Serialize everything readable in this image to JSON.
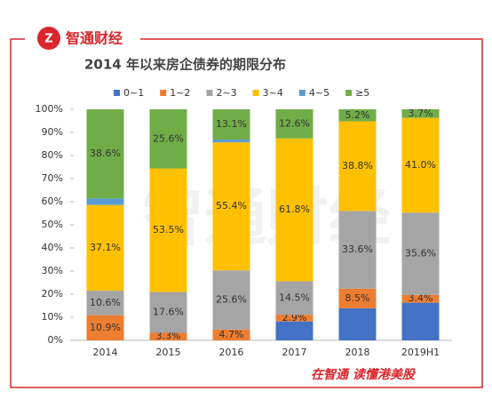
{
  "header": {
    "logo": "智通财经"
  },
  "footer": {
    "slogan": "在智通 读懂港美股"
  },
  "chart_data": {
    "type": "stacked_bar",
    "title": "2014 年以来房企债券的期限分布",
    "categories": [
      "2014",
      "2015",
      "2016",
      "2017",
      "2018",
      "2019H1"
    ],
    "series": [
      {
        "name": "0~1",
        "color": "#4472c4",
        "values": [
          0,
          0,
          0,
          8.2,
          13.9,
          16.3
        ],
        "value_labels": [
          null,
          null,
          null,
          null,
          null,
          null
        ]
      },
      {
        "name": "1~2",
        "color": "#ed7d31",
        "values": [
          10.9,
          3.3,
          4.7,
          2.9,
          8.5,
          3.4
        ],
        "value_labels": [
          "10.9%",
          "3.3%",
          "4.7%",
          "2.9%",
          "8.5%",
          "3.4%"
        ]
      },
      {
        "name": "2~3",
        "color": "#a5a5a5",
        "values": [
          10.6,
          17.6,
          25.6,
          14.5,
          33.6,
          35.6
        ],
        "value_labels": [
          "10.6%",
          "17.6%",
          "25.6%",
          "14.5%",
          "33.6%",
          "35.6%"
        ]
      },
      {
        "name": "3~4",
        "color": "#ffc000",
        "values": [
          37.1,
          53.5,
          55.4,
          61.8,
          38.8,
          41.0
        ],
        "value_labels": [
          "37.1%",
          "53.5%",
          "55.4%",
          "61.8%",
          "38.8%",
          "41.0%"
        ]
      },
      {
        "name": "4~5",
        "color": "#5b9bd5",
        "values": [
          2.8,
          0,
          1.2,
          0,
          0,
          0
        ],
        "value_labels": [
          null,
          null,
          null,
          null,
          null,
          null
        ]
      },
      {
        "name": "≥5",
        "color": "#70ad47",
        "values": [
          38.6,
          25.6,
          13.1,
          12.6,
          5.2,
          3.7
        ],
        "value_labels": [
          "38.6%",
          "25.6%",
          "13.1%",
          "12.6%",
          "5.2%",
          "3.7%"
        ]
      }
    ],
    "ylim": [
      0,
      100
    ],
    "yticks": [
      {
        "value": 0,
        "label": "0%"
      },
      {
        "value": 10,
        "label": "10%"
      },
      {
        "value": 20,
        "label": "20%"
      },
      {
        "value": 30,
        "label": "30%"
      },
      {
        "value": 40,
        "label": "40%"
      },
      {
        "value": 50,
        "label": "50%"
      },
      {
        "value": 60,
        "label": "60%"
      },
      {
        "value": 70,
        "label": "70%"
      },
      {
        "value": 80,
        "label": "80%"
      },
      {
        "value": 90,
        "label": "90%"
      },
      {
        "value": 100,
        "label": "100%"
      }
    ],
    "legend": "top"
  }
}
